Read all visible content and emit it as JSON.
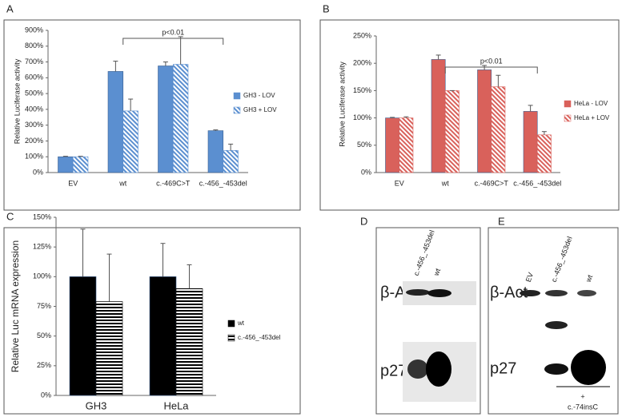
{
  "chart_data": [
    {
      "type": "bar",
      "panel": "A",
      "y_label": "Relative Luciferase activity",
      "annotation": "p<0.01",
      "categories": [
        "EV",
        "wt",
        "c.-469C>T",
        "c.-456_-453del"
      ],
      "series": [
        {
          "name": "GH3 - LOV",
          "color": "#5b8fd0",
          "fill_style": "solid",
          "values": [
            100,
            640,
            675,
            265
          ],
          "errors": [
            3,
            65,
            25,
            5
          ]
        },
        {
          "name": "GH3 + LOV",
          "color": "#5b8fd0",
          "fill_style": "diagonal",
          "values": [
            100,
            390,
            685,
            140
          ],
          "errors": [
            3,
            75,
            175,
            40
          ]
        }
      ],
      "ylim": [
        0,
        900
      ],
      "yticks": [
        {
          "value": 0,
          "label": "0%"
        },
        {
          "value": 100,
          "label": "100%"
        },
        {
          "value": 200,
          "label": "200%"
        },
        {
          "value": 300,
          "label": "300%"
        },
        {
          "value": 400,
          "label": "400%"
        },
        {
          "value": 500,
          "label": "500%"
        },
        {
          "value": 600,
          "label": "600%"
        },
        {
          "value": 700,
          "label": "700%"
        },
        {
          "value": 800,
          "label": "800%"
        },
        {
          "value": 900,
          "label": "900%"
        }
      ]
    },
    {
      "type": "bar",
      "panel": "B",
      "y_label": "Relative Luciferase activity",
      "annotation": "p<0.01",
      "categories": [
        "EV",
        "wt",
        "c.-469C>T",
        "c.-456_-453del"
      ],
      "series": [
        {
          "name": "HeLa - LOV",
          "color": "#d9615b",
          "fill_style": "solid",
          "values": [
            100,
            207,
            188,
            112
          ],
          "errors": [
            1,
            8,
            8,
            11
          ]
        },
        {
          "name": "HeLa + LOV",
          "color": "#d9615b",
          "fill_style": "diagonal",
          "values": [
            100,
            150,
            157,
            69
          ],
          "errors": [
            2,
            0,
            21,
            6
          ]
        }
      ],
      "ylim": [
        0,
        250
      ],
      "yticks": [
        {
          "value": 0,
          "label": "0%"
        },
        {
          "value": 50,
          "label": "50%"
        },
        {
          "value": 100,
          "label": "100%"
        },
        {
          "value": 150,
          "label": "150%"
        },
        {
          "value": 200,
          "label": "200%"
        },
        {
          "value": 250,
          "label": "250%"
        }
      ]
    },
    {
      "type": "bar",
      "panel": "C",
      "y_label": "Relative Luc mRNA expression",
      "categories": [
        "GH3",
        "HeLa"
      ],
      "series": [
        {
          "name": "wt",
          "color": "#000000",
          "fill_style": "solid",
          "values": [
            100,
            100
          ],
          "errors": [
            40,
            28
          ]
        },
        {
          "name": "c.-456_-453del",
          "color": "#000000",
          "fill_style": "horizontal",
          "values": [
            79,
            90
          ],
          "errors": [
            40,
            20
          ]
        }
      ],
      "ylim": [
        0,
        150
      ],
      "yticks": [
        {
          "value": 0,
          "label": "0%"
        },
        {
          "value": 25,
          "label": "25%"
        },
        {
          "value": 50,
          "label": "50%"
        },
        {
          "value": 75,
          "label": "75%"
        },
        {
          "value": 100,
          "label": "100%"
        },
        {
          "value": 125,
          "label": "125%"
        },
        {
          "value": 150,
          "label": "150%"
        }
      ]
    }
  ],
  "blots": [
    {
      "panel": "D",
      "lanes": [
        "c.-456_-453del",
        "wt"
      ],
      "rows": [
        "β-Act",
        "p27"
      ]
    },
    {
      "panel": "E",
      "lanes": [
        "EV",
        "c.-456_-453del",
        "wt"
      ],
      "rows": [
        "β-Act",
        "p27"
      ],
      "treatment": "+",
      "treatment_label": "c.-74insC"
    }
  ]
}
